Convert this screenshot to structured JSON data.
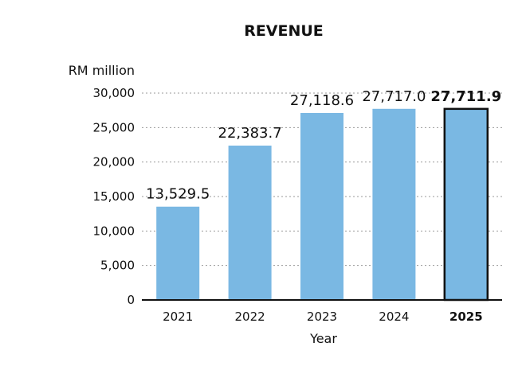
{
  "chart_data": {
    "type": "bar",
    "title": "REVENUE",
    "ylabel": "RM million",
    "xlabel": "Year",
    "categories": [
      "2021",
      "2022",
      "2023",
      "2024",
      "2025"
    ],
    "values": [
      13529.5,
      22383.7,
      27118.6,
      27717.0,
      27711.9
    ],
    "value_labels": [
      "13,529.5",
      "22,383.7",
      "27,118.6",
      "27,717.0",
      "27,711.9"
    ],
    "highlight_index": 4,
    "ylim": [
      0,
      30000
    ],
    "yticks": [
      0,
      5000,
      10000,
      15000,
      20000,
      25000,
      30000
    ],
    "ytick_labels": [
      "0",
      "5,000",
      "10,000",
      "15,000",
      "20,000",
      "25,000",
      "30,000"
    ],
    "grid": true,
    "colors": {
      "bar": "#7ab8e3",
      "highlight_border": "#111111",
      "axis": "#111111",
      "grid": "#9a9a9a"
    }
  }
}
